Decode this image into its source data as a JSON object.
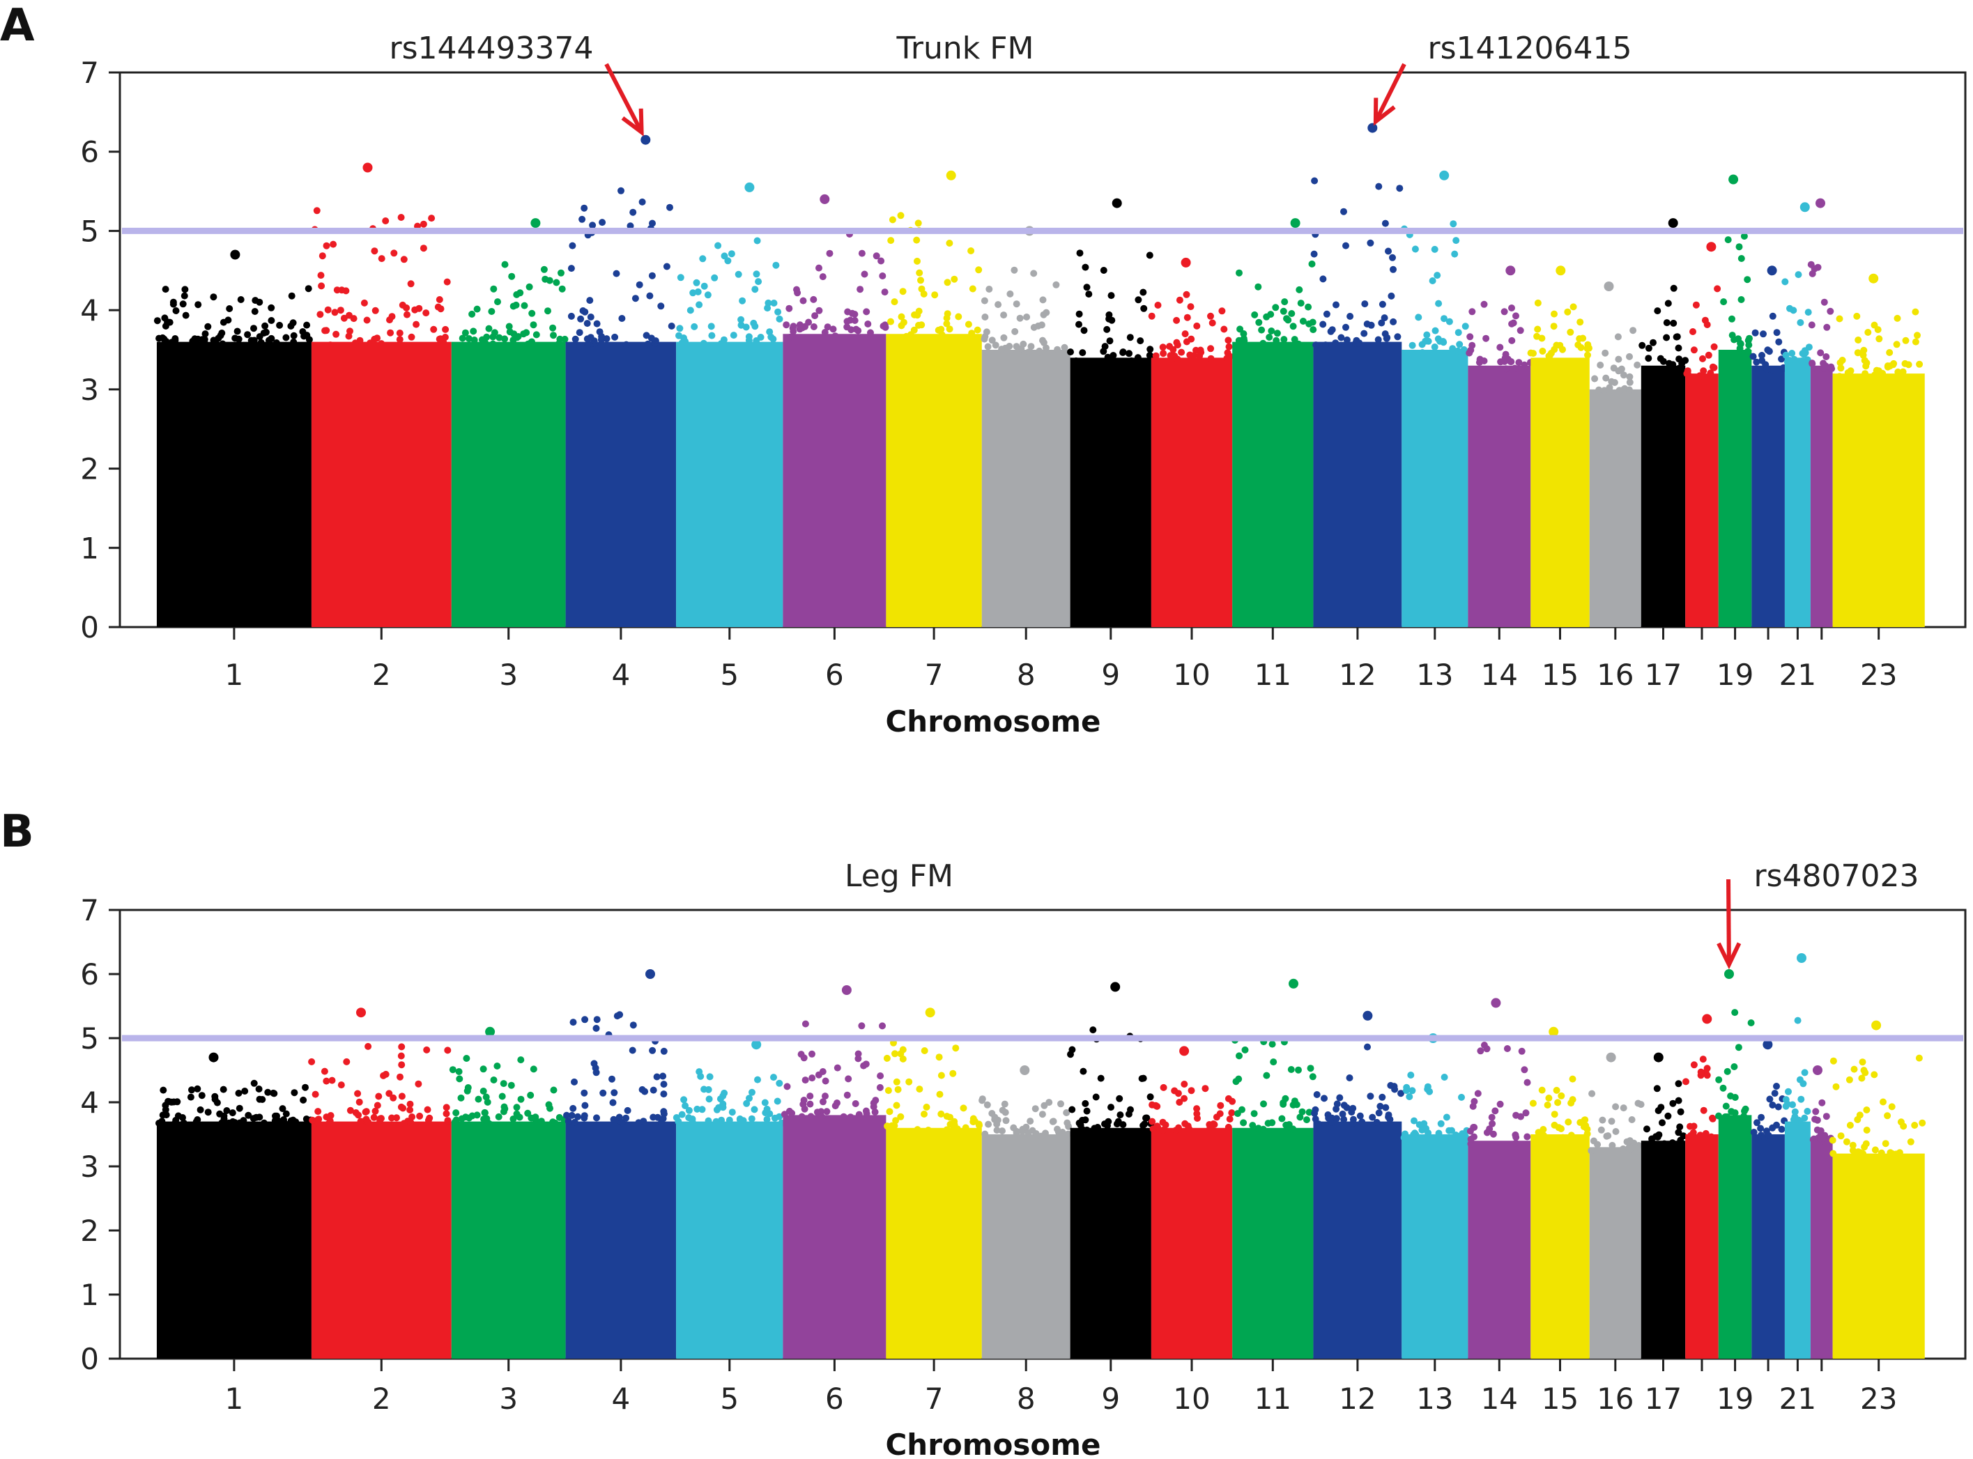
{
  "chart_data": [
    {
      "type": "scatter",
      "panel": "A",
      "title": "Trunk FM",
      "xlabel": "Chromosome",
      "ylabel": "",
      "ylim": [
        0,
        7
      ],
      "yticks": [
        0,
        1,
        2,
        3,
        4,
        5,
        6,
        7
      ],
      "threshold": 5,
      "threshold_color": "#b9b4ea",
      "grid": false,
      "chromosomes": [
        {
          "chr": "1",
          "label": "1",
          "color": "#000000",
          "typical": 3.6,
          "max_y": 4.7
        },
        {
          "chr": "2",
          "label": "2",
          "color": "#ec1c24",
          "typical": 3.6,
          "max_y": 5.8
        },
        {
          "chr": "3",
          "label": "3",
          "color": "#00a651",
          "typical": 3.6,
          "max_y": 5.1
        },
        {
          "chr": "4",
          "label": "4",
          "color": "#1c3f95",
          "typical": 3.6,
          "max_y": 6.15
        },
        {
          "chr": "5",
          "label": "5",
          "color": "#36bcd4",
          "typical": 3.6,
          "max_y": 5.55
        },
        {
          "chr": "6",
          "label": "6",
          "color": "#92439b",
          "typical": 3.7,
          "max_y": 5.4
        },
        {
          "chr": "7",
          "label": "7",
          "color": "#f1e400",
          "typical": 3.7,
          "max_y": 5.7
        },
        {
          "chr": "8",
          "label": "8",
          "color": "#a7a9ac",
          "typical": 3.5,
          "max_y": 5.0
        },
        {
          "chr": "9",
          "label": "9",
          "color": "#000000",
          "typical": 3.4,
          "max_y": 5.35
        },
        {
          "chr": "10",
          "label": "10",
          "color": "#ec1c24",
          "typical": 3.4,
          "max_y": 4.6
        },
        {
          "chr": "11",
          "label": "11",
          "color": "#00a651",
          "typical": 3.6,
          "max_y": 5.1
        },
        {
          "chr": "12",
          "label": "12",
          "color": "#1c3f95",
          "typical": 3.6,
          "max_y": 6.3
        },
        {
          "chr": "13",
          "label": "13",
          "color": "#36bcd4",
          "typical": 3.5,
          "max_y": 5.7
        },
        {
          "chr": "14",
          "label": "14",
          "color": "#92439b",
          "typical": 3.3,
          "max_y": 4.5
        },
        {
          "chr": "15",
          "label": "15",
          "color": "#f1e400",
          "typical": 3.4,
          "max_y": 4.5
        },
        {
          "chr": "16",
          "label": "16",
          "color": "#a7a9ac",
          "typical": 3.0,
          "max_y": 4.3
        },
        {
          "chr": "17",
          "label": "17",
          "color": "#000000",
          "typical": 3.3,
          "max_y": 5.1
        },
        {
          "chr": "18",
          "label": "",
          "color": "#ec1c24",
          "typical": 3.2,
          "max_y": 4.8
        },
        {
          "chr": "19",
          "label": "19",
          "color": "#00a651",
          "typical": 3.5,
          "max_y": 5.65
        },
        {
          "chr": "20",
          "label": "",
          "color": "#1c3f95",
          "typical": 3.3,
          "max_y": 4.5
        },
        {
          "chr": "21",
          "label": "21",
          "color": "#36bcd4",
          "typical": 3.4,
          "max_y": 5.3
        },
        {
          "chr": "22",
          "label": "",
          "color": "#92439b",
          "typical": 3.3,
          "max_y": 5.35
        },
        {
          "chr": "23",
          "label": "23",
          "color": "#f1e400",
          "typical": 3.2,
          "max_y": 4.4
        }
      ],
      "annotations": [
        {
          "text": "rs144493374",
          "chr": "4",
          "y": 6.15
        },
        {
          "text": "rs141206415",
          "chr": "12",
          "y": 6.3
        }
      ]
    },
    {
      "type": "scatter",
      "panel": "B",
      "title": "Leg FM",
      "xlabel": "Chromosome",
      "ylabel": "",
      "ylim": [
        0,
        7
      ],
      "yticks": [
        0,
        1,
        2,
        3,
        4,
        5,
        6,
        7
      ],
      "threshold": 5,
      "threshold_color": "#b9b4ea",
      "grid": false,
      "chromosomes": [
        {
          "chr": "1",
          "label": "1",
          "color": "#000000",
          "typical": 3.7,
          "max_y": 4.7
        },
        {
          "chr": "2",
          "label": "2",
          "color": "#ec1c24",
          "typical": 3.7,
          "max_y": 5.4
        },
        {
          "chr": "3",
          "label": "3",
          "color": "#00a651",
          "typical": 3.7,
          "max_y": 5.1
        },
        {
          "chr": "4",
          "label": "4",
          "color": "#1c3f95",
          "typical": 3.7,
          "max_y": 6.0
        },
        {
          "chr": "5",
          "label": "5",
          "color": "#36bcd4",
          "typical": 3.7,
          "max_y": 4.9
        },
        {
          "chr": "6",
          "label": "6",
          "color": "#92439b",
          "typical": 3.8,
          "max_y": 5.75
        },
        {
          "chr": "7",
          "label": "7",
          "color": "#f1e400",
          "typical": 3.6,
          "max_y": 5.4
        },
        {
          "chr": "8",
          "label": "8",
          "color": "#a7a9ac",
          "typical": 3.5,
          "max_y": 4.5
        },
        {
          "chr": "9",
          "label": "9",
          "color": "#000000",
          "typical": 3.6,
          "max_y": 5.8
        },
        {
          "chr": "10",
          "label": "10",
          "color": "#ec1c24",
          "typical": 3.6,
          "max_y": 4.8
        },
        {
          "chr": "11",
          "label": "11",
          "color": "#00a651",
          "typical": 3.6,
          "max_y": 5.85
        },
        {
          "chr": "12",
          "label": "12",
          "color": "#1c3f95",
          "typical": 3.7,
          "max_y": 5.35
        },
        {
          "chr": "13",
          "label": "13",
          "color": "#36bcd4",
          "typical": 3.5,
          "max_y": 5.0
        },
        {
          "chr": "14",
          "label": "14",
          "color": "#92439b",
          "typical": 3.4,
          "max_y": 5.55
        },
        {
          "chr": "15",
          "label": "15",
          "color": "#f1e400",
          "typical": 3.5,
          "max_y": 5.1
        },
        {
          "chr": "16",
          "label": "16",
          "color": "#a7a9ac",
          "typical": 3.3,
          "max_y": 4.7
        },
        {
          "chr": "17",
          "label": "17",
          "color": "#000000",
          "typical": 3.4,
          "max_y": 4.7
        },
        {
          "chr": "18",
          "label": "",
          "color": "#ec1c24",
          "typical": 3.5,
          "max_y": 5.3
        },
        {
          "chr": "19",
          "label": "19",
          "color": "#00a651",
          "typical": 3.8,
          "max_y": 6.0
        },
        {
          "chr": "20",
          "label": "",
          "color": "#1c3f95",
          "typical": 3.5,
          "max_y": 4.9
        },
        {
          "chr": "21",
          "label": "21",
          "color": "#36bcd4",
          "typical": 3.7,
          "max_y": 6.25
        },
        {
          "chr": "22",
          "label": "",
          "color": "#92439b",
          "typical": 3.4,
          "max_y": 4.5
        },
        {
          "chr": "23",
          "label": "23",
          "color": "#f1e400",
          "typical": 3.2,
          "max_y": 5.2
        }
      ],
      "annotations": [
        {
          "text": "rs4807023",
          "chr": "19",
          "y": 6.0
        }
      ]
    }
  ]
}
